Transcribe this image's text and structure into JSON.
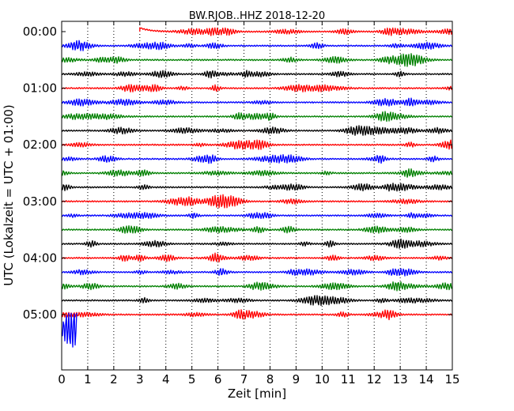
{
  "chart_data": {
    "type": "line",
    "title": "BW.RJOB..HHZ 2018-12-20",
    "xlabel": "Zeit  [min]",
    "ylabel": "UTC (Lokalzeit = UTC + 01:00)",
    "xlim": [
      0,
      15
    ],
    "x_ticks": [
      "0",
      "1",
      "2",
      "3",
      "4",
      "5",
      "6",
      "7",
      "8",
      "9",
      "10",
      "11",
      "12",
      "13",
      "14",
      "15"
    ],
    "y_tick_labels": [
      "00:00",
      "01:00",
      "02:00",
      "03:00",
      "04:00",
      "05:00"
    ],
    "grid": "vertical dotted",
    "trace_interval_min": 15,
    "colors": [
      "#ff0000",
      "#0000ff",
      "#008000",
      "#000000"
    ],
    "traces": [
      {
        "start": "00:00",
        "x_start": 3.0,
        "x_end": 15,
        "color": "#ff0000"
      },
      {
        "start": "00:15",
        "x_start": 0,
        "x_end": 15,
        "color": "#0000ff"
      },
      {
        "start": "00:30",
        "x_start": 0,
        "x_end": 15,
        "color": "#008000"
      },
      {
        "start": "00:45",
        "x_start": 0,
        "x_end": 15,
        "color": "#000000"
      },
      {
        "start": "01:00",
        "x_start": 0,
        "x_end": 15,
        "color": "#ff0000"
      },
      {
        "start": "01:15",
        "x_start": 0,
        "x_end": 15,
        "color": "#0000ff"
      },
      {
        "start": "01:30",
        "x_start": 0,
        "x_end": 15,
        "color": "#008000"
      },
      {
        "start": "01:45",
        "x_start": 0,
        "x_end": 15,
        "color": "#000000"
      },
      {
        "start": "02:00",
        "x_start": 0,
        "x_end": 15,
        "color": "#ff0000"
      },
      {
        "start": "02:15",
        "x_start": 0,
        "x_end": 15,
        "color": "#0000ff"
      },
      {
        "start": "02:30",
        "x_start": 0,
        "x_end": 15,
        "color": "#008000"
      },
      {
        "start": "02:45",
        "x_start": 0,
        "x_end": 15,
        "color": "#000000"
      },
      {
        "start": "03:00",
        "x_start": 0,
        "x_end": 15,
        "color": "#ff0000"
      },
      {
        "start": "03:15",
        "x_start": 0,
        "x_end": 15,
        "color": "#0000ff"
      },
      {
        "start": "03:30",
        "x_start": 0,
        "x_end": 15,
        "color": "#008000"
      },
      {
        "start": "03:45",
        "x_start": 0,
        "x_end": 15,
        "color": "#000000"
      },
      {
        "start": "04:00",
        "x_start": 0,
        "x_end": 15,
        "color": "#ff0000"
      },
      {
        "start": "04:15",
        "x_start": 0,
        "x_end": 15,
        "color": "#0000ff"
      },
      {
        "start": "04:30",
        "x_start": 0,
        "x_end": 15,
        "color": "#008000"
      },
      {
        "start": "04:45",
        "x_start": 0,
        "x_end": 15,
        "color": "#000000"
      },
      {
        "start": "05:00",
        "x_start": 0,
        "x_end": 15,
        "color": "#ff0000"
      },
      {
        "start": "05:15",
        "x_start": 0,
        "x_end": 0.6,
        "color": "#0000ff"
      }
    ]
  }
}
